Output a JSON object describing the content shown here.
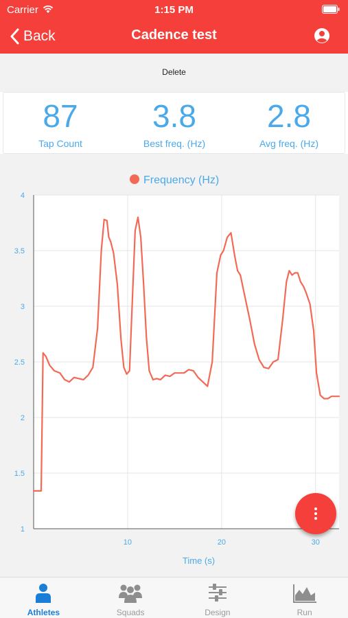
{
  "status": {
    "carrier": "Carrier",
    "time": "1:15 PM"
  },
  "nav": {
    "back_label": "Back",
    "title": "Cadence test"
  },
  "actions": {
    "delete_label": "Delete"
  },
  "stats": [
    {
      "value": "87",
      "label": "Tap Count"
    },
    {
      "value": "3.8",
      "label": "Best freq. (Hz)"
    },
    {
      "value": "2.8",
      "label": "Avg freq. (Hz)"
    }
  ],
  "tabs": [
    {
      "label": "Athletes",
      "icon": "person-icon",
      "active": true
    },
    {
      "label": "Squads",
      "icon": "group-icon",
      "active": false
    },
    {
      "label": "Design",
      "icon": "sliders-icon",
      "active": false
    },
    {
      "label": "Run",
      "icon": "area-chart-icon",
      "active": false
    }
  ],
  "colors": {
    "accent": "#f43f3a",
    "stat_text": "#4aa9ea",
    "line": "#f26a55",
    "tab_active": "#1a7ed8"
  },
  "chart_data": {
    "type": "line",
    "legend": "Frequency (Hz)",
    "legend_position": "top-center",
    "xlabel": "Time (s)",
    "ylabel": "",
    "xlim": [
      0,
      32.5
    ],
    "ylim": [
      1,
      4
    ],
    "xticks": [
      "10",
      "20",
      "30"
    ],
    "yticks": [
      "1",
      "1.5",
      "2",
      "2.5",
      "3",
      "3.5",
      "4"
    ],
    "grid": true,
    "series": [
      {
        "name": "Frequency (Hz)",
        "x": [
          0,
          0.5,
          0.8,
          1.0,
          1.3,
          1.7,
          2.2,
          2.8,
          3.3,
          3.8,
          4.3,
          4.8,
          5.3,
          5.8,
          6.3,
          6.8,
          7.2,
          7.5,
          7.8,
          8.0,
          8.2,
          8.5,
          8.9,
          9.3,
          9.6,
          9.9,
          10.2,
          10.5,
          10.8,
          11.1,
          11.4,
          11.7,
          12.0,
          12.3,
          12.7,
          13.1,
          13.5,
          14.0,
          14.5,
          15.0,
          15.5,
          16.0,
          16.5,
          17.0,
          17.5,
          18.0,
          18.5,
          19.0,
          19.5,
          19.9,
          20.2,
          20.6,
          21.0,
          21.4,
          21.7,
          22.0,
          22.3,
          22.6,
          23.0,
          23.5,
          24.0,
          24.5,
          25.0,
          25.5,
          26.0,
          26.5,
          26.9,
          27.2,
          27.5,
          27.8,
          28.1,
          28.4,
          28.7,
          29.0,
          29.4,
          29.8,
          30.1,
          30.5,
          30.9,
          31.3,
          31.7,
          32.1,
          32.5
        ],
        "y": [
          1.34,
          1.34,
          1.34,
          2.58,
          2.55,
          2.47,
          2.42,
          2.4,
          2.34,
          2.32,
          2.36,
          2.35,
          2.34,
          2.38,
          2.45,
          2.8,
          3.5,
          3.78,
          3.77,
          3.62,
          3.58,
          3.48,
          3.2,
          2.7,
          2.45,
          2.39,
          2.42,
          3.05,
          3.68,
          3.8,
          3.62,
          3.2,
          2.72,
          2.42,
          2.34,
          2.35,
          2.34,
          2.38,
          2.37,
          2.4,
          2.4,
          2.4,
          2.43,
          2.42,
          2.36,
          2.32,
          2.28,
          2.5,
          3.3,
          3.46,
          3.5,
          3.62,
          3.66,
          3.45,
          3.32,
          3.28,
          3.16,
          3.04,
          2.88,
          2.66,
          2.52,
          2.45,
          2.44,
          2.5,
          2.52,
          2.88,
          3.22,
          3.32,
          3.28,
          3.3,
          3.3,
          3.22,
          3.18,
          3.12,
          3.02,
          2.78,
          2.4,
          2.2,
          2.17,
          2.17,
          2.19,
          2.19,
          2.19
        ]
      }
    ]
  }
}
